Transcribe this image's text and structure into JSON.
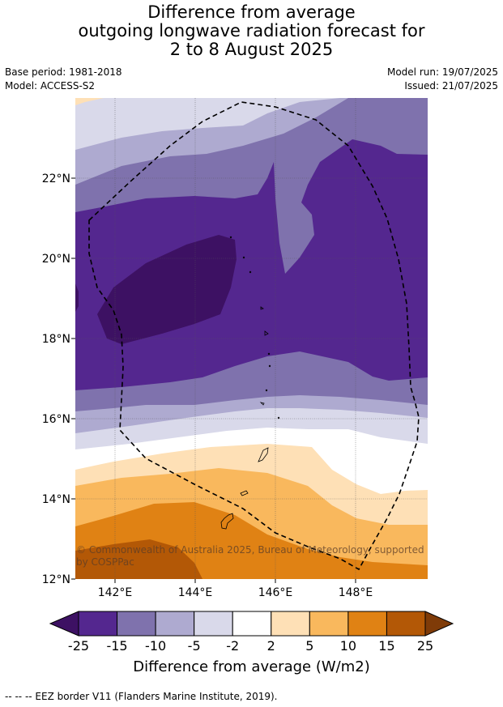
{
  "title_lines": [
    "Difference from average",
    "outgoing longwave radiation forecast for",
    "2 to 8 August 2025"
  ],
  "meta": {
    "base_period": "Base period: 1981-2018",
    "model": "Model: ACCESS-S2",
    "model_run": "Model run: 19/07/2025",
    "issued": "Issued: 21/07/2025"
  },
  "map": {
    "lat_ticks": [
      "22°N",
      "20°N",
      "18°N",
      "16°N",
      "14°N",
      "12°N"
    ],
    "lon_ticks": [
      "142°E",
      "144°E",
      "146°E",
      "148°E"
    ],
    "copyright": "© Commonwealth of Australia 2025, Bureau of Meteorology, supported by COSPPac"
  },
  "colorbar": {
    "boundaries": [
      "-25",
      "-15",
      "-10",
      "-5",
      "-2",
      "2",
      "5",
      "10",
      "15",
      "25"
    ],
    "colors": [
      "#3d1163",
      "#54278f",
      "#7f72ad",
      "#aeaad0",
      "#d9d9ea",
      "#ffffff",
      "#fee0b6",
      "#f9b85d",
      "#e08214",
      "#b35806",
      "#7f3b08"
    ],
    "title": "Difference from average (W/m2)"
  },
  "footnote": "--  --  -- EEZ border V11 (Flanders Marine Institute, 2019)."
}
